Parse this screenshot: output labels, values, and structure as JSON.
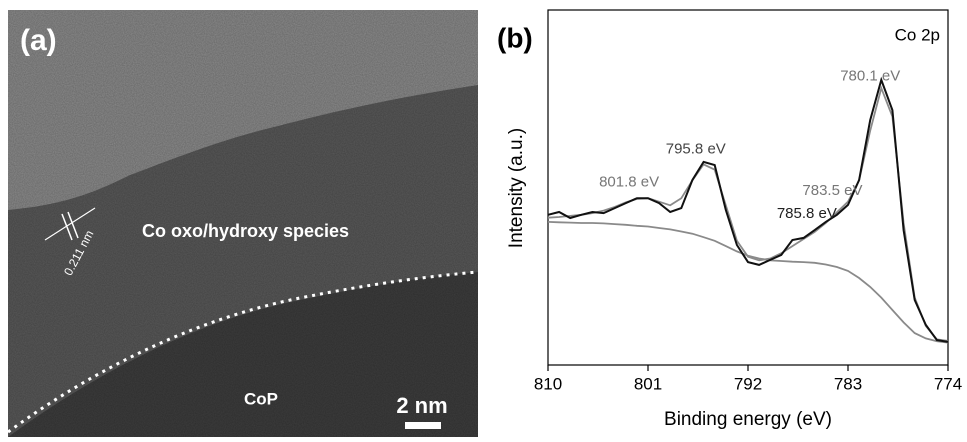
{
  "panel_a": {
    "label": "(a)",
    "region_label": "Co oxo/hydroxy species",
    "lattice_spacing": "0.211 nm",
    "core_label": "CoP",
    "scale_bar": "2 nm"
  },
  "chart_data": {
    "type": "line",
    "panel_label": "(b)",
    "title": "Co 2p",
    "x_label": "Binding energy (eV)",
    "y_label": "Intensity (a.u.)",
    "x": [
      810,
      809,
      808,
      807,
      806,
      805,
      804,
      803,
      802,
      801,
      800,
      799,
      798,
      797,
      796,
      795,
      794,
      793,
      792,
      791,
      790,
      789,
      788,
      787,
      786,
      785,
      784,
      783,
      782,
      781,
      780,
      779,
      778,
      777,
      776,
      775,
      774
    ],
    "series": [
      {
        "color": "#111111",
        "values": [
          42.3,
          43.1,
          41.4,
          42.3,
          43.1,
          42.8,
          44.2,
          45.6,
          47.0,
          47.0,
          45.6,
          43.1,
          44.2,
          52.1,
          57.2,
          56.3,
          43.7,
          33.8,
          29.0,
          28.2,
          29.6,
          31.0,
          35.2,
          35.8,
          38.0,
          40.3,
          42.3,
          45.1,
          52.1,
          69.0,
          80.3,
          71.8,
          38.0,
          18.3,
          11.3,
          7.0,
          6.5
        ]
      },
      {
        "color": "#8a8a8a",
        "values": [
          41.5,
          41.7,
          42,
          42.3,
          42.8,
          43.5,
          44.5,
          45.8,
          46.8,
          47,
          46,
          45,
          47,
          52,
          56.5,
          55,
          45,
          35,
          30.5,
          29.5,
          30,
          31.5,
          33.5,
          35.5,
          37.5,
          40,
          43,
          46,
          52,
          66,
          78,
          70,
          40,
          19,
          11,
          7.2,
          6.8
        ]
      },
      {
        "color": "#8a8a8a",
        "values": [
          40.3,
          40.2,
          40.1,
          40,
          40,
          39.9,
          39.7,
          39.5,
          39.2,
          39,
          38.6,
          38.2,
          37.6,
          37,
          36,
          35,
          33.5,
          32,
          30.8,
          30,
          29.5,
          29.3,
          29.1,
          29,
          28.8,
          28.3,
          27.6,
          26.5,
          24.5,
          22,
          19,
          15.5,
          12,
          9,
          7.5,
          6.7,
          6.3
        ]
      }
    ],
    "annotations": [
      {
        "value": 801.8,
        "label": "801.8 eV",
        "color": "#777777"
      },
      {
        "value": 795.8,
        "label": "795.8 eV",
        "color": "#444444"
      },
      {
        "value": 785.8,
        "label": "785.8 eV",
        "color": "#222222"
      },
      {
        "value": 783.5,
        "label": "783.5 eV",
        "color": "#777777"
      },
      {
        "value": 780.1,
        "label": "780.1 eV",
        "color": "#777777"
      }
    ],
    "xlim": [
      810,
      774
    ],
    "ylim": [
      0,
      100
    ],
    "xticks": [
      810,
      801,
      792,
      783,
      774
    ]
  }
}
